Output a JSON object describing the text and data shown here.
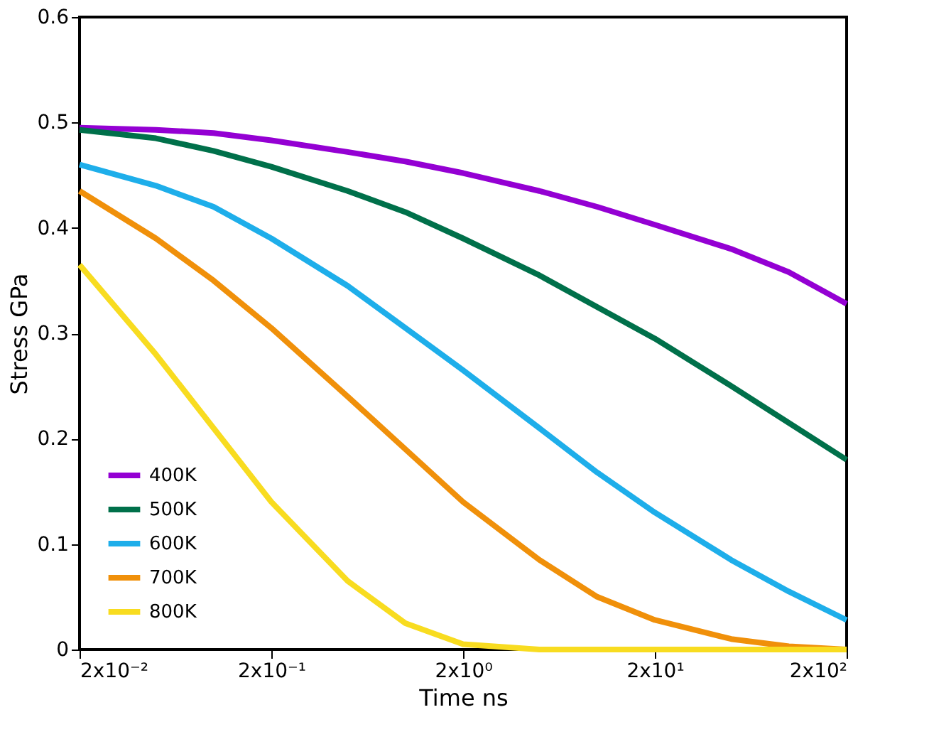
{
  "chart_data": {
    "type": "line",
    "xlabel": "Time ns",
    "ylabel": "Stress GPa",
    "log": "x",
    "x": [
      0.02,
      0.05,
      0.1,
      0.2,
      0.5,
      1,
      2,
      5,
      10,
      20,
      50,
      100,
      200
    ],
    "series": [
      {
        "name": "400K",
        "color": "#9400d3",
        "values": [
          0.495,
          0.493,
          0.49,
          0.483,
          0.472,
          0.463,
          0.452,
          0.435,
          0.42,
          0.403,
          0.38,
          0.358,
          0.328
        ]
      },
      {
        "name": "500K",
        "color": "#00704a",
        "values": [
          0.493,
          0.485,
          0.473,
          0.458,
          0.435,
          0.415,
          0.39,
          0.355,
          0.325,
          0.295,
          0.25,
          0.215,
          0.18
        ]
      },
      {
        "name": "600K",
        "color": "#1eaeea",
        "values": [
          0.46,
          0.44,
          0.42,
          0.39,
          0.345,
          0.305,
          0.265,
          0.21,
          0.168,
          0.13,
          0.085,
          0.055,
          0.028
        ]
      },
      {
        "name": "700K",
        "color": "#f0900a",
        "values": [
          0.435,
          0.39,
          0.35,
          0.305,
          0.24,
          0.19,
          0.14,
          0.085,
          0.05,
          0.028,
          0.01,
          0.003,
          0
        ]
      },
      {
        "name": "800K",
        "color": "#f8dc20",
        "values": [
          0.365,
          0.28,
          0.21,
          0.14,
          0.065,
          0.025,
          0.005,
          0,
          0,
          0,
          0,
          0,
          0
        ]
      }
    ],
    "xlim": [
      0.02,
      200
    ],
    "xticks": [
      {
        "value": 0.02,
        "label": "2x10⁻²"
      },
      {
        "value": 0.2,
        "label": "2x10⁻¹"
      },
      {
        "value": 2,
        "label": "2x10⁰"
      },
      {
        "value": 20,
        "label": "2x10¹"
      },
      {
        "value": 200,
        "label": "2x10²"
      }
    ],
    "ylim": [
      0,
      0.6
    ],
    "yticks": [
      0,
      0.1,
      0.2,
      0.3,
      0.4,
      0.5,
      0.6
    ],
    "grid": false,
    "legend": "bottom left",
    "line_style": "solid",
    "marker": "none"
  }
}
